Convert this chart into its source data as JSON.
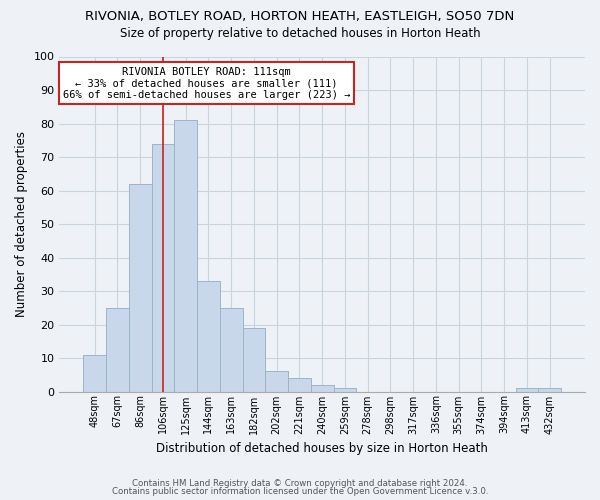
{
  "title": "RIVONIA, BOTLEY ROAD, HORTON HEATH, EASTLEIGH, SO50 7DN",
  "subtitle": "Size of property relative to detached houses in Horton Heath",
  "xlabel": "Distribution of detached houses by size in Horton Heath",
  "ylabel": "Number of detached properties",
  "bar_color": "#c8d8ea",
  "bar_edge_color": "#9ab4cc",
  "annotation_box_text": "RIVONIA BOTLEY ROAD: 111sqm\n← 33% of detached houses are smaller (111)\n66% of semi-detached houses are larger (223) →",
  "vertical_line_color": "#cc2222",
  "annotation_box_color": "#ffffff",
  "annotation_box_edge_color": "#cc2222",
  "footer_line1": "Contains HM Land Registry data © Crown copyright and database right 2024.",
  "footer_line2": "Contains public sector information licensed under the Open Government Licence v.3.0.",
  "categories": [
    "48sqm",
    "67sqm",
    "86sqm",
    "106sqm",
    "125sqm",
    "144sqm",
    "163sqm",
    "182sqm",
    "202sqm",
    "221sqm",
    "240sqm",
    "259sqm",
    "278sqm",
    "298sqm",
    "317sqm",
    "336sqm",
    "355sqm",
    "374sqm",
    "394sqm",
    "413sqm",
    "432sqm"
  ],
  "values": [
    11,
    25,
    62,
    74,
    81,
    33,
    25,
    19,
    6,
    4,
    2,
    1,
    0,
    0,
    0,
    0,
    0,
    0,
    0,
    1,
    1
  ],
  "ylim": [
    0,
    100
  ],
  "yticks": [
    0,
    10,
    20,
    30,
    40,
    50,
    60,
    70,
    80,
    90,
    100
  ],
  "grid_color": "#c8d4de",
  "background_color": "#eef2f6"
}
